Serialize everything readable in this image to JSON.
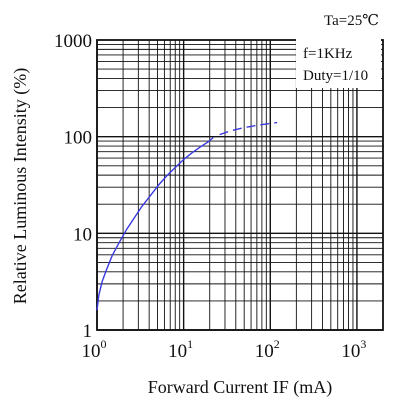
{
  "chart_data": {
    "type": "line",
    "title": "",
    "xlabel": "Forward Current IF (mA)",
    "ylabel": "Relative Luminous Intensity (%)",
    "x_scale": "log",
    "y_scale": "log",
    "xlim": [
      1,
      2000
    ],
    "ylim": [
      1,
      1000
    ],
    "grid": true,
    "x_ticks": [
      {
        "value": 1,
        "base": "10",
        "exp": "0"
      },
      {
        "value": 10,
        "base": "10",
        "exp": "1"
      },
      {
        "value": 100,
        "base": "10",
        "exp": "2"
      },
      {
        "value": 1000,
        "base": "10",
        "exp": "3"
      }
    ],
    "y_ticks": [
      {
        "value": 1,
        "label": "1"
      },
      {
        "value": 10,
        "label": "10"
      },
      {
        "value": 100,
        "label": "100"
      },
      {
        "value": 1000,
        "label": "1000"
      }
    ],
    "annotations": {
      "temperature": "Ta=25℃",
      "frequency": "f=1KHz",
      "duty": "Duty=1/10"
    },
    "series": [
      {
        "line_color": "#3a3ae0",
        "solid": {
          "x": [
            1.0,
            1.05,
            1.15,
            1.3,
            1.5,
            1.8,
            2.2,
            2.7,
            3.3,
            4.2,
            5.2,
            6.5,
            8.0,
            10,
            12.5,
            15.5,
            19,
            22
          ],
          "y": [
            1.6,
            2.3,
            3.2,
            4.3,
            5.9,
            8.0,
            11.0,
            14.5,
            19.0,
            25.0,
            32.0,
            40.0,
            48.0,
            58.0,
            68.0,
            78.0,
            88.0,
            98.0
          ]
        },
        "dashed": {
          "x": [
            26,
            35,
            50,
            70,
            100,
            120
          ],
          "y": [
            105,
            115,
            124,
            131,
            137,
            140
          ]
        }
      }
    ]
  }
}
